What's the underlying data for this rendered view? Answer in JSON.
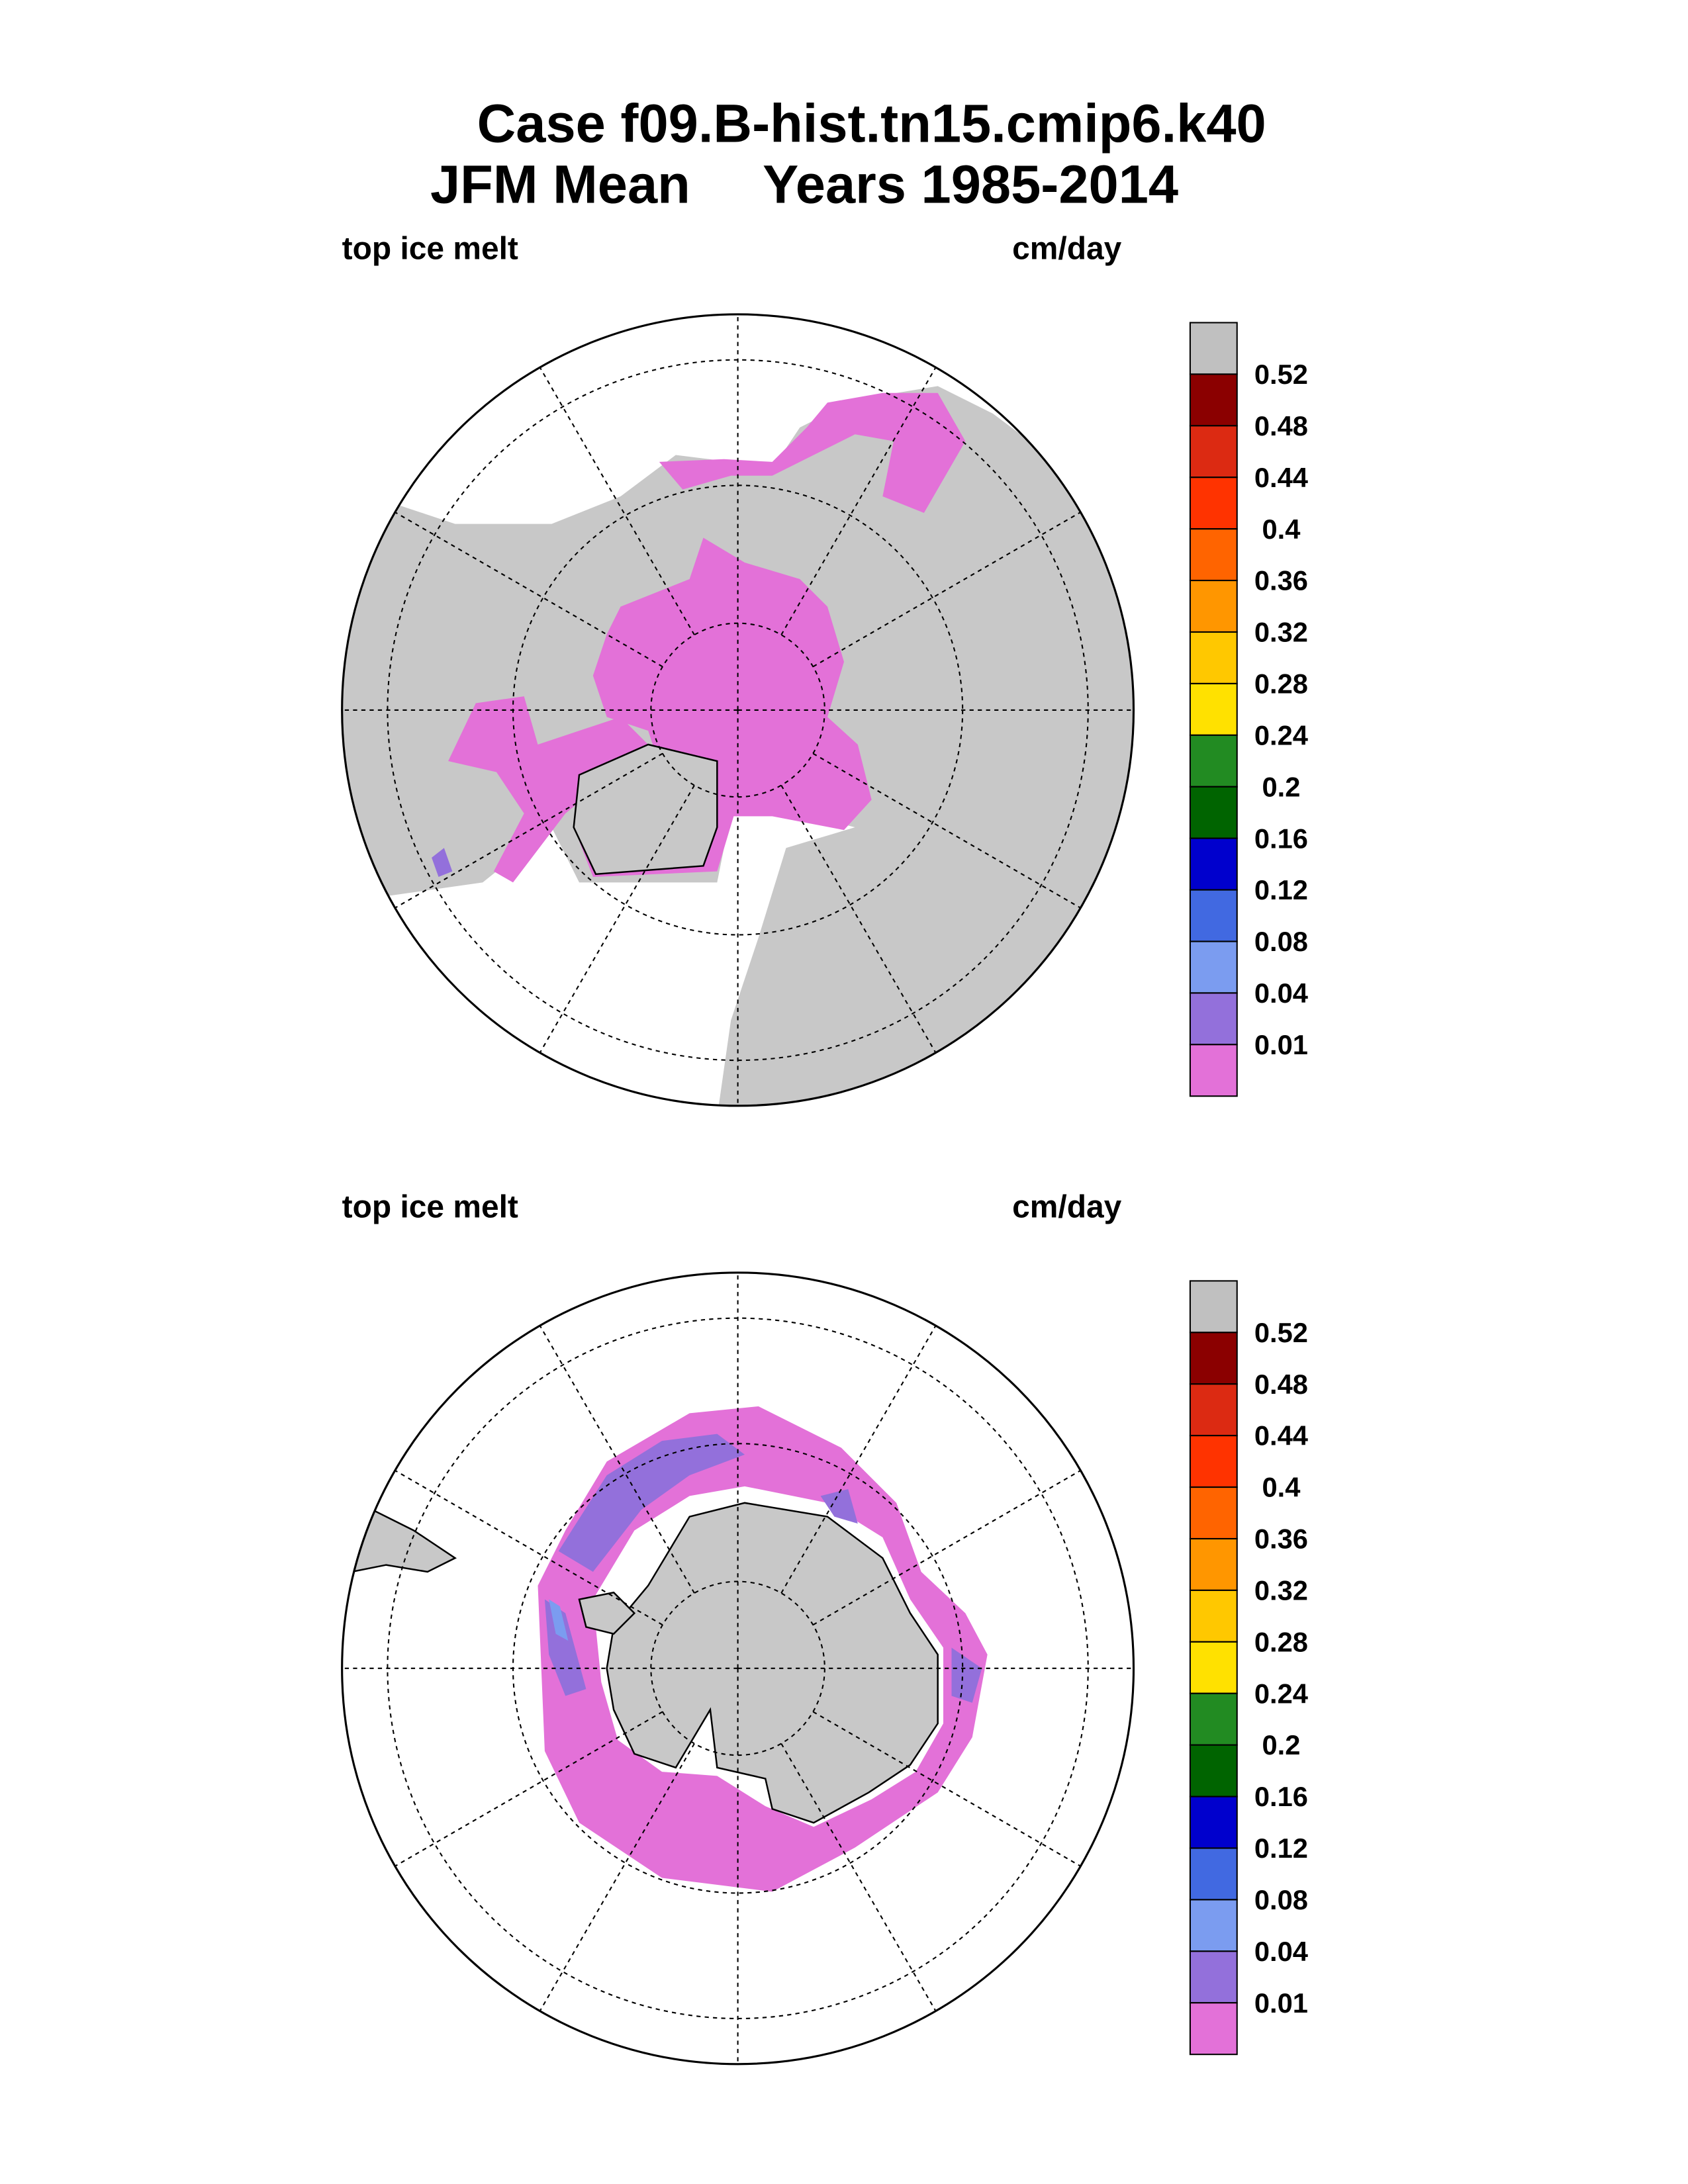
{
  "title": {
    "line1": "Case f09.B-hist.tn15.cmip6.k40",
    "line2_left": "JFM Mean",
    "line2_right": "Years 1985-2014"
  },
  "chart_data": {
    "type": "heatmap",
    "description_kind": "polar stereographic contour maps",
    "panels": [
      {
        "name": "northern-hemisphere",
        "left_label": "top ice melt",
        "right_label": "cm/day"
      },
      {
        "name": "southern-hemisphere",
        "left_label": "top ice melt",
        "right_label": "cm/day"
      }
    ],
    "levels": [
      "0.52",
      "0.48",
      "0.44",
      "0.4",
      "0.36",
      "0.32",
      "0.28",
      "0.24",
      "0.2",
      "0.16",
      "0.12",
      "0.08",
      "0.04",
      "0.01"
    ],
    "colors": [
      "#c0c0c0",
      "#8b0000",
      "#dc2a12",
      "#ff3300",
      "#ff6400",
      "#ff9600",
      "#ffc800",
      "#ffe100",
      "#228b22",
      "#006400",
      "#0000cd",
      "#4169e1",
      "#7b9cf0",
      "#9370db",
      "#e371d8"
    ],
    "units": "cm/day",
    "land_color": "#c8c8c8"
  }
}
